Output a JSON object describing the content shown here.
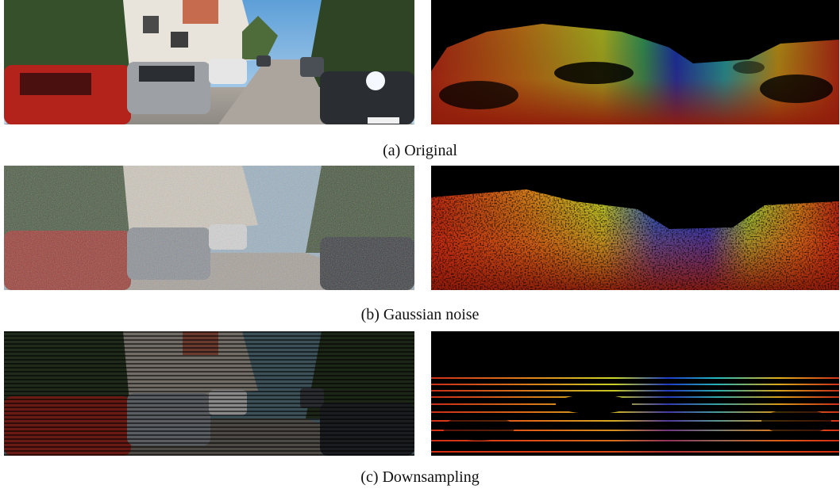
{
  "rows": [
    {
      "caption": "(a) Original"
    },
    {
      "caption": "(b) Gaussian noise"
    },
    {
      "caption": "(c) Downsampling"
    }
  ],
  "colors": {
    "lidar_near": "#d42a12",
    "lidar_mid": "#e8d11c",
    "lidar_far": "#1d3fd6",
    "background": "#000000"
  }
}
